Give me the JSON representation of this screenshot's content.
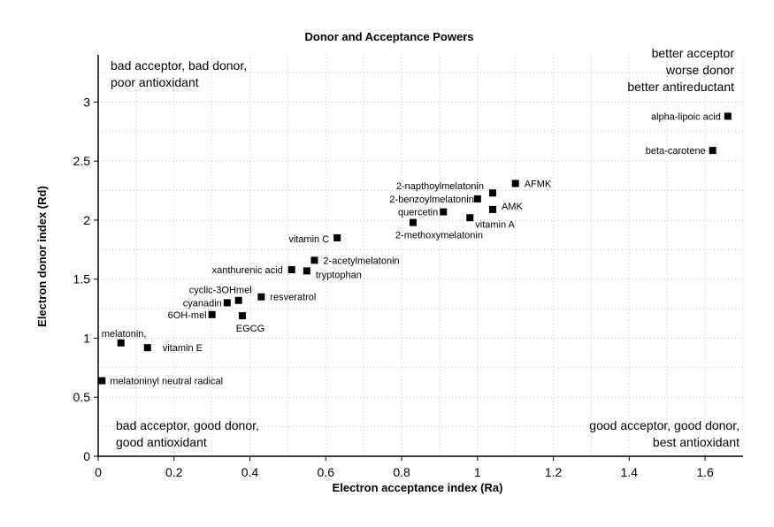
{
  "chart_data": {
    "type": "scatter",
    "title": "Donor and Acceptance Powers",
    "xlabel": "Electron acceptance index (Ra)",
    "ylabel": "Electron donor index (Rd)",
    "xlim": [
      0,
      1.7
    ],
    "ylim": [
      0,
      3.4
    ],
    "xticks": [
      "0",
      "0.2",
      "0.4",
      "0.6",
      "0.8",
      "1",
      "1.2",
      "1.4",
      "1.6"
    ],
    "yticks": [
      "0",
      "0.5",
      "1",
      "1.5",
      "2",
      "2.5",
      "3"
    ],
    "grid": "dotted",
    "marker": "square",
    "color": "#000000",
    "quadrant_notes": {
      "top_left": [
        "bad acceptor, bad donor,",
        "poor antioxidant"
      ],
      "top_right": [
        "better acceptor",
        "worse donor",
        "better antireductant"
      ],
      "bottom_left": [
        "bad acceptor, good donor,",
        "good antioxidant"
      ],
      "bottom_right": [
        "good acceptor, good donor,",
        "best antioxidant"
      ]
    },
    "points": [
      {
        "label": "alpha-lipoic acid",
        "x": 1.66,
        "y": 2.88
      },
      {
        "label": "beta-carotene",
        "x": 1.62,
        "y": 2.59
      },
      {
        "label": "AFMK",
        "x": 1.1,
        "y": 2.31
      },
      {
        "label": "2-napthoylmelatonin",
        "x": 1.04,
        "y": 2.23
      },
      {
        "label": "2-benzoylmelatonin",
        "x": 1.0,
        "y": 2.18
      },
      {
        "label": "AMK",
        "x": 1.04,
        "y": 2.09
      },
      {
        "label": "quercetin",
        "x": 0.91,
        "y": 2.07
      },
      {
        "label": "vitamin A",
        "x": 0.98,
        "y": 2.02
      },
      {
        "label": "2-methoxymelatonin",
        "x": 0.83,
        "y": 1.98
      },
      {
        "label": "vitamin C",
        "x": 0.63,
        "y": 1.85
      },
      {
        "label": "2-acetylmelatonin",
        "x": 0.57,
        "y": 1.66
      },
      {
        "label": "xanthurenic acid",
        "x": 0.51,
        "y": 1.58
      },
      {
        "label": "tryptophan",
        "x": 0.55,
        "y": 1.57
      },
      {
        "label": "cyclic-3OHmel",
        "x": 0.37,
        "y": 1.32
      },
      {
        "label": "cyanadin",
        "x": 0.34,
        "y": 1.3
      },
      {
        "label": "resveratrol",
        "x": 0.43,
        "y": 1.35
      },
      {
        "label": "6OH-mel",
        "x": 0.3,
        "y": 1.2
      },
      {
        "label": "EGCG",
        "x": 0.38,
        "y": 1.19
      },
      {
        "label": "melatonin,",
        "x": 0.06,
        "y": 0.96
      },
      {
        "label": "vitamin E",
        "x": 0.13,
        "y": 0.92
      },
      {
        "label": "melatoninyl neutral radical",
        "x": 0.01,
        "y": 0.64
      }
    ]
  }
}
